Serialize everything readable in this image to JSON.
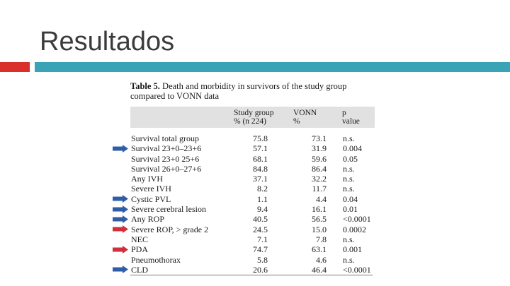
{
  "slide_title": "Resultados",
  "table": {
    "caption_bold": "Table 5.",
    "caption_rest": " Death and morbidity in survivors of the study group compared to VONN data",
    "headers": [
      {
        "line1": "Study group",
        "line2": "% (n   224)"
      },
      {
        "line1": "VONN",
        "line2": "%"
      },
      {
        "line1": "p",
        "line2": "value"
      }
    ],
    "rows": [
      {
        "label": "Survival total group",
        "study": "75.8",
        "vonn": "73.1",
        "p": "n.s.",
        "arrow": ""
      },
      {
        "label": "Survival 23+0–23+6",
        "study": "57.1",
        "vonn": "31.9",
        "p": "0.004",
        "arrow": "blue"
      },
      {
        "label": "Survival 23+0   25+6",
        "study": "68.1",
        "vonn": "59.6",
        "p": "0.05",
        "arrow": ""
      },
      {
        "label": "Survival 26+0–27+6",
        "study": "84.8",
        "vonn": "86.4",
        "p": "n.s.",
        "arrow": ""
      },
      {
        "label": "Any IVH",
        "study": "37.1",
        "vonn": "32.2",
        "p": "n.s.",
        "arrow": ""
      },
      {
        "label": "Severe IVH",
        "study": "8.2",
        "vonn": "11.7",
        "p": "n.s.",
        "arrow": ""
      },
      {
        "label": "Cystic PVL",
        "study": "1.1",
        "vonn": "4.4",
        "p": "0.04",
        "arrow": "blue"
      },
      {
        "label": "Severe cerebral lesion",
        "study": "9.4",
        "vonn": "16.1",
        "p": "0.01",
        "arrow": "blue"
      },
      {
        "label": "Any ROP",
        "study": "40.5",
        "vonn": "56.5",
        "p": "<0.0001",
        "arrow": "blue"
      },
      {
        "label": "Severe ROP, > grade 2",
        "study": "24.5",
        "vonn": "15.0",
        "p": "0.0002",
        "arrow": "red"
      },
      {
        "label": "NEC",
        "study": "7.1",
        "vonn": "7.8",
        "p": "n.s.",
        "arrow": ""
      },
      {
        "label": "PDA",
        "study": "74.7",
        "vonn": "63.1",
        "p": "0.001",
        "arrow": "red"
      },
      {
        "label": "Pneumothorax",
        "study": "5.8",
        "vonn": "4.6",
        "p": "n.s.",
        "arrow": ""
      },
      {
        "label": "CLD",
        "study": "20.6",
        "vonn": "46.4",
        "p": "<0.0001",
        "arrow": "blue"
      }
    ]
  },
  "colors": {
    "red_bar": "#d9302c",
    "teal_bar": "#3aa3b5",
    "arrow_blue": "#2f5ea8",
    "arrow_red": "#d12f3c",
    "header_bg": "#e1e1e1"
  }
}
